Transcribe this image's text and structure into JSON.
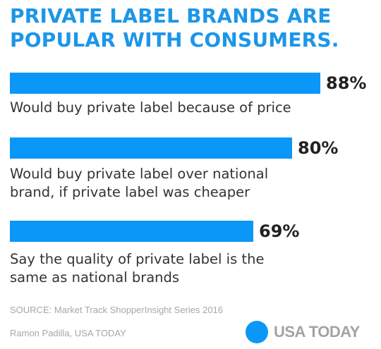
{
  "title_lines": [
    "PRIVATE LABEL BRANDS ARE",
    "POPULAR WITH CONSUMERS."
  ],
  "colors": {
    "bar": "#0a97f7",
    "title": "#1c96e8",
    "logo_dot": "#0a97f7"
  },
  "chart_data": {
    "type": "bar",
    "orientation": "horizontal",
    "title": "PRIVATE LABEL BRANDS ARE POPULAR WITH CONSUMERS.",
    "categories": [
      "Would buy private label because of price",
      "Would buy private label over national brand, if private label was cheaper",
      "Say the quality of private label is the same as national brands"
    ],
    "values": [
      88,
      80,
      69
    ],
    "unit": "%",
    "xlim": [
      0,
      100
    ],
    "grid": false,
    "legend": "none"
  },
  "items": [
    {
      "value_label": "88%",
      "label_lines": [
        "Would buy private label because of price"
      ]
    },
    {
      "value_label": "80%",
      "label_lines": [
        "Would buy private label over national",
        "brand, if private label was cheaper"
      ]
    },
    {
      "value_label": "69%",
      "label_lines": [
        "Say the quality of private label is the",
        "same as national brands"
      ]
    }
  ],
  "source": "SOURCE:  Market Track ShopperInsight Series 2016",
  "credit": "Ramon Padilla, USA TODAY",
  "logo": {
    "text": "USA TODAY"
  }
}
